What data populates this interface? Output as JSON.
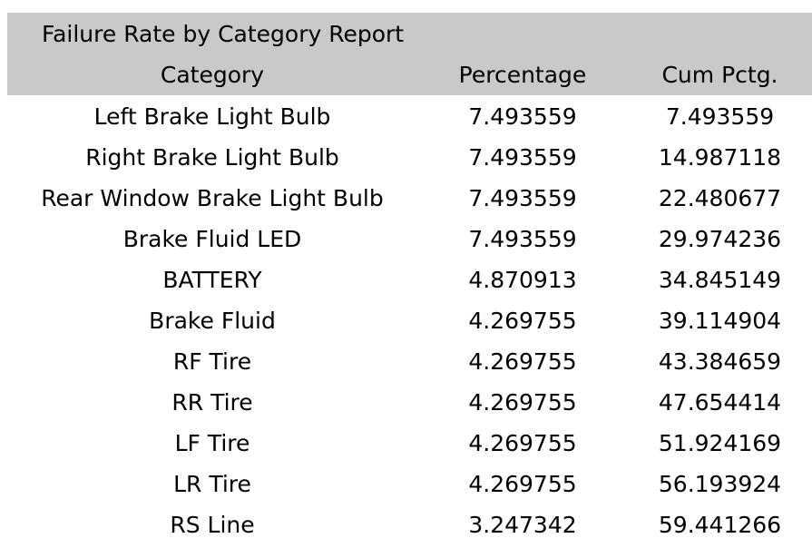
{
  "chart_data": {
    "type": "table",
    "title": "Failure Rate by Category Report",
    "columns": [
      "Category",
      "Percentage",
      "Cum Pctg."
    ],
    "rows": [
      {
        "category": "Left Brake Light Bulb",
        "percentage": "7.493559",
        "cum_pctg": "7.493559"
      },
      {
        "category": "Right Brake Light Bulb",
        "percentage": "7.493559",
        "cum_pctg": "14.987118"
      },
      {
        "category": "Rear Window Brake Light Bulb",
        "percentage": "7.493559",
        "cum_pctg": "22.480677"
      },
      {
        "category": "Brake Fluid LED",
        "percentage": "7.493559",
        "cum_pctg": "29.974236"
      },
      {
        "category": "BATTERY",
        "percentage": "4.870913",
        "cum_pctg": "34.845149"
      },
      {
        "category": "Brake Fluid",
        "percentage": "4.269755",
        "cum_pctg": "39.114904"
      },
      {
        "category": "RF Tire",
        "percentage": "4.269755",
        "cum_pctg": "43.384659"
      },
      {
        "category": "RR Tire",
        "percentage": "4.269755",
        "cum_pctg": "47.654414"
      },
      {
        "category": "LF Tire",
        "percentage": "4.269755",
        "cum_pctg": "51.924169"
      },
      {
        "category": "LR Tire",
        "percentage": "4.269755",
        "cum_pctg": "56.193924"
      },
      {
        "category": "RS Line",
        "percentage": "3.247342",
        "cum_pctg": "59.441266"
      }
    ],
    "colors": {
      "header_background": "#c9c9c9",
      "text": "#000000",
      "background": "#ffffff"
    }
  }
}
